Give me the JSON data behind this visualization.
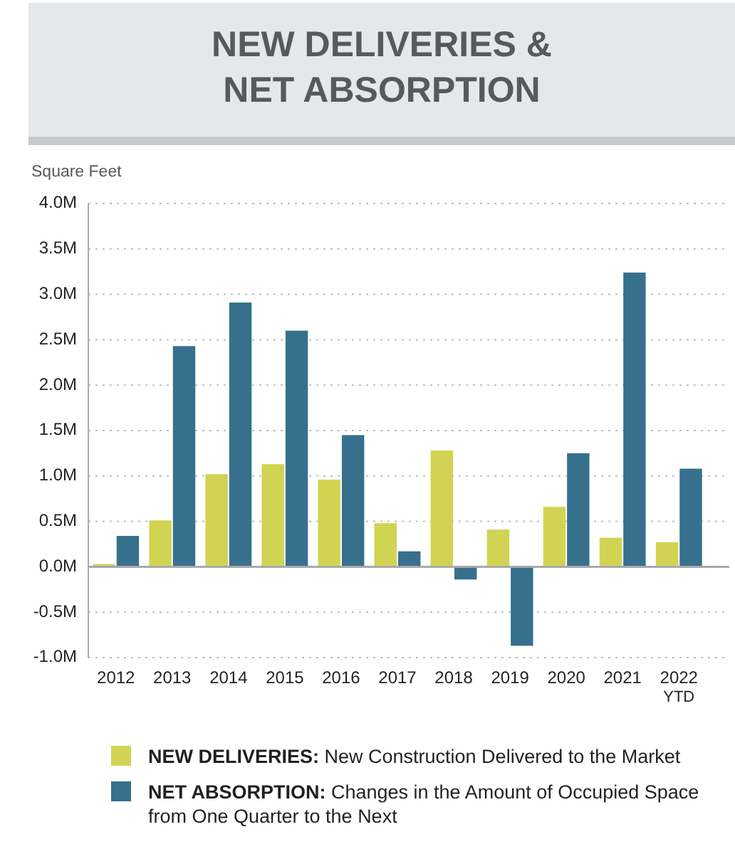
{
  "chart_data": {
    "type": "bar",
    "title": "NEW DELIVERIES & NET ABSORPTION",
    "ylabel": "Square Feet",
    "categories": [
      "2012",
      "2013",
      "2014",
      "2015",
      "2016",
      "2017",
      "2018",
      "2019",
      "2020",
      "2021",
      "2022 YTD"
    ],
    "series": [
      {
        "name": "NEW DELIVERIES: New Construction Delivered to the Market",
        "color": "#d1d452",
        "values": [
          0.03,
          0.51,
          1.02,
          1.13,
          0.96,
          0.48,
          1.28,
          0.41,
          0.66,
          0.32,
          0.27
        ]
      },
      {
        "name": "NET ABSORPTION: Changes in the Amount of Occupied Space from One Quarter to the Next",
        "color": "#37708d",
        "values": [
          0.34,
          2.43,
          2.91,
          2.6,
          1.45,
          0.17,
          -0.14,
          -0.87,
          1.25,
          3.24,
          1.08
        ]
      }
    ],
    "ylim": [
      -1,
      4
    ],
    "yticks": [
      {
        "value": -1,
        "label": "-1.0M"
      },
      {
        "value": -0.5,
        "label": "-0.5M"
      },
      {
        "value": 0,
        "label": "0.0M"
      },
      {
        "value": 0.5,
        "label": "0.5M"
      },
      {
        "value": 1,
        "label": "1.0M"
      },
      {
        "value": 1.5,
        "label": "1.5M"
      },
      {
        "value": 2,
        "label": "2.0M"
      },
      {
        "value": 2.5,
        "label": "2.5M"
      },
      {
        "value": 3,
        "label": "3.0M"
      },
      {
        "value": 3.5,
        "label": "3.5M"
      },
      {
        "value": 4,
        "label": "4.0M"
      }
    ],
    "grid": "y",
    "legend": "bottom"
  }
}
